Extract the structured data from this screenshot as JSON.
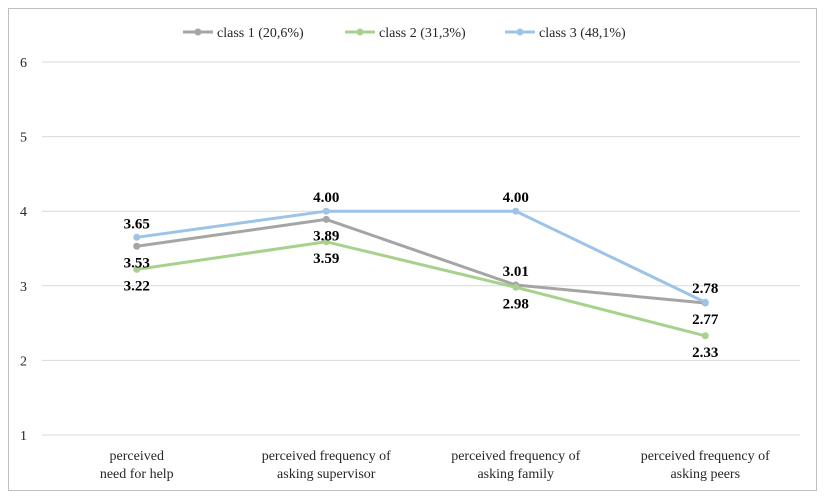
{
  "chart_data": {
    "type": "line",
    "categories": [
      [
        "perceived",
        "need for help"
      ],
      [
        "perceived frequency of",
        "asking supervisor"
      ],
      [
        "perceived frequency of",
        "asking family"
      ],
      [
        "perceived frequency of",
        "asking peers"
      ]
    ],
    "series": [
      {
        "name": "class 1 (20,6%)",
        "color": "#a5a5a5",
        "values": [
          3.53,
          3.89,
          3.01,
          2.77
        ]
      },
      {
        "name": "class 2 (31,3%)",
        "color": "#a9d18e",
        "values": [
          3.22,
          3.59,
          2.98,
          2.33
        ]
      },
      {
        "name": "class 3 (48,1%)",
        "color": "#9dc3e6",
        "values": [
          3.65,
          4.0,
          4.0,
          2.78
        ]
      }
    ],
    "data_labels": [
      {
        "text": "3.65",
        "x": 0,
        "y": 3.65,
        "pos": "above"
      },
      {
        "text": "3.53",
        "x": 0,
        "y": 3.53,
        "pos": "below"
      },
      {
        "text": "3.22",
        "x": 0,
        "y": 3.22,
        "pos": "below"
      },
      {
        "text": "4.00",
        "x": 1,
        "y": 4.0,
        "pos": "above"
      },
      {
        "text": "3.89",
        "x": 1,
        "y": 3.89,
        "pos": "below"
      },
      {
        "text": "3.59",
        "x": 1,
        "y": 3.59,
        "pos": "below"
      },
      {
        "text": "4.00",
        "x": 2,
        "y": 4.0,
        "pos": "above"
      },
      {
        "text": "3.01",
        "x": 2,
        "y": 3.01,
        "pos": "above"
      },
      {
        "text": "2.98",
        "x": 2,
        "y": 2.98,
        "pos": "below"
      },
      {
        "text": "2.78",
        "x": 3,
        "y": 2.78,
        "pos": "above"
      },
      {
        "text": "2.77",
        "x": 3,
        "y": 2.77,
        "pos": "below"
      },
      {
        "text": "2.33",
        "x": 3,
        "y": 2.33,
        "pos": "below"
      }
    ],
    "yticks": [
      "1",
      "2",
      "3",
      "4",
      "5",
      "6"
    ],
    "ylim": [
      1,
      6
    ],
    "grid": true,
    "legend": "top-center",
    "gridline_color": "#d9d9d9"
  }
}
